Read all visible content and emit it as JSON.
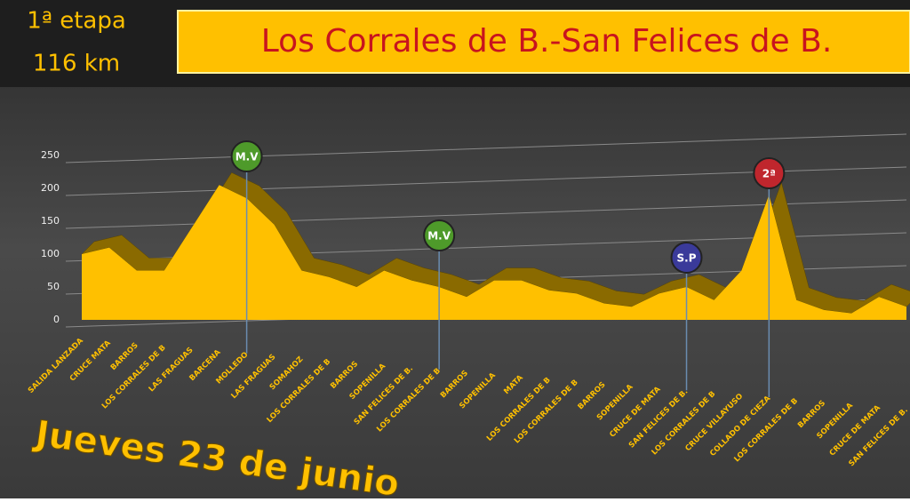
{
  "header": {
    "stage": "1ª etapa",
    "distance": "116 km",
    "title": "Los Corrales de B.-San Felices de B."
  },
  "chart_data": {
    "type": "area",
    "subtitle": "Jueves 23 de junio",
    "categories": [
      "SALIDA LANZADA",
      "CRUCE MATA",
      "BARROS",
      "LOS CORRALES DE B",
      "LAS FRAGUAS",
      "BARCENA",
      "MOLLEDO",
      "LAS FRAGUAS",
      "SOMAHOZ",
      "LOS CORRALES DE B",
      "BARROS",
      "SOPENILLA",
      "SAN FELICES DE B.",
      "LOS CORRALES DE B",
      "BARROS",
      "SOPENILLA",
      "MATA",
      "LOS CORRALES DE B",
      "LOS CORRALES DE B",
      "BARROS",
      "SOPENILLA",
      "CRUCE DE MATA",
      "SAN FELICES DE B.",
      "LOS CORRALES DE B",
      "CRUCE VILLAYUSO",
      "COLLADO DE CIEZA",
      "LOS CORRALES DE B",
      "BARROS",
      "SOPENILLA",
      "CRUCE DE MATA",
      "SAN FELICES DE B."
    ],
    "values": [
      100,
      110,
      75,
      75,
      140,
      205,
      185,
      145,
      75,
      65,
      50,
      75,
      60,
      50,
      35,
      60,
      60,
      45,
      40,
      25,
      20,
      40,
      50,
      30,
      75,
      190,
      30,
      15,
      10,
      35,
      20
    ],
    "color": "#ffc000",
    "ylim": [
      0,
      250
    ],
    "yticks": [
      0,
      50,
      100,
      150,
      200,
      250
    ],
    "grid": true,
    "annotations": [
      {
        "text": "M.V",
        "category_index": 6,
        "color": "#4e9a2a"
      },
      {
        "text": "M.V",
        "category_index": 13,
        "color": "#4e9a2a"
      },
      {
        "text": "S.P",
        "category_index": 22,
        "color": "#3a3a9a"
      },
      {
        "text": "2ª",
        "category_index": 25,
        "color": "#c0262d"
      }
    ]
  }
}
